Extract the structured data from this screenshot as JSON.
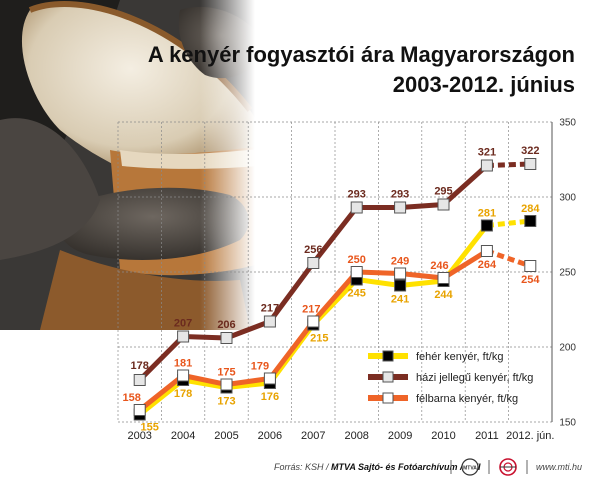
{
  "chart_data": {
    "type": "line",
    "title": "A kenyér fogyasztói ára Magyarországon",
    "subtitle": "2003-2012. június",
    "categories": [
      "2003",
      "2004",
      "2005",
      "2006",
      "2007",
      "2008",
      "2009",
      "2010",
      "2011",
      "2012. jún."
    ],
    "ylim": [
      150,
      350
    ],
    "yticks": [
      150,
      200,
      250,
      300,
      350
    ],
    "grid": true,
    "legend_position": "bottom-right",
    "series": [
      {
        "name": "fehér kenyér, ft/kg",
        "color": "#ffe100",
        "marker_fill": "#000000",
        "label_color": "#e8a300",
        "values": [
          155,
          178,
          173,
          176,
          215,
          245,
          241,
          244,
          281,
          284
        ]
      },
      {
        "name": "házi jellegű kenyér, ft/kg",
        "color": "#7b2d22",
        "marker_fill": "#e6e6e6",
        "label_color": "#6b2a1e",
        "values": [
          178,
          207,
          206,
          217,
          256,
          293,
          293,
          295,
          321,
          322
        ]
      },
      {
        "name": "félbarna kenyér, ft/kg",
        "color": "#ef6428",
        "marker_fill": "#ffffff",
        "label_color": "#e8561c",
        "values": [
          158,
          181,
          175,
          179,
          217,
          250,
          249,
          246,
          264,
          254
        ]
      }
    ]
  },
  "footer": {
    "source_prefix": "Forrás: KSH / ",
    "source_bold": "MTVA Sajtó- és Fotóarchívum / MTI",
    "site": "www.mti.hu",
    "logo_text": "MTVA"
  }
}
